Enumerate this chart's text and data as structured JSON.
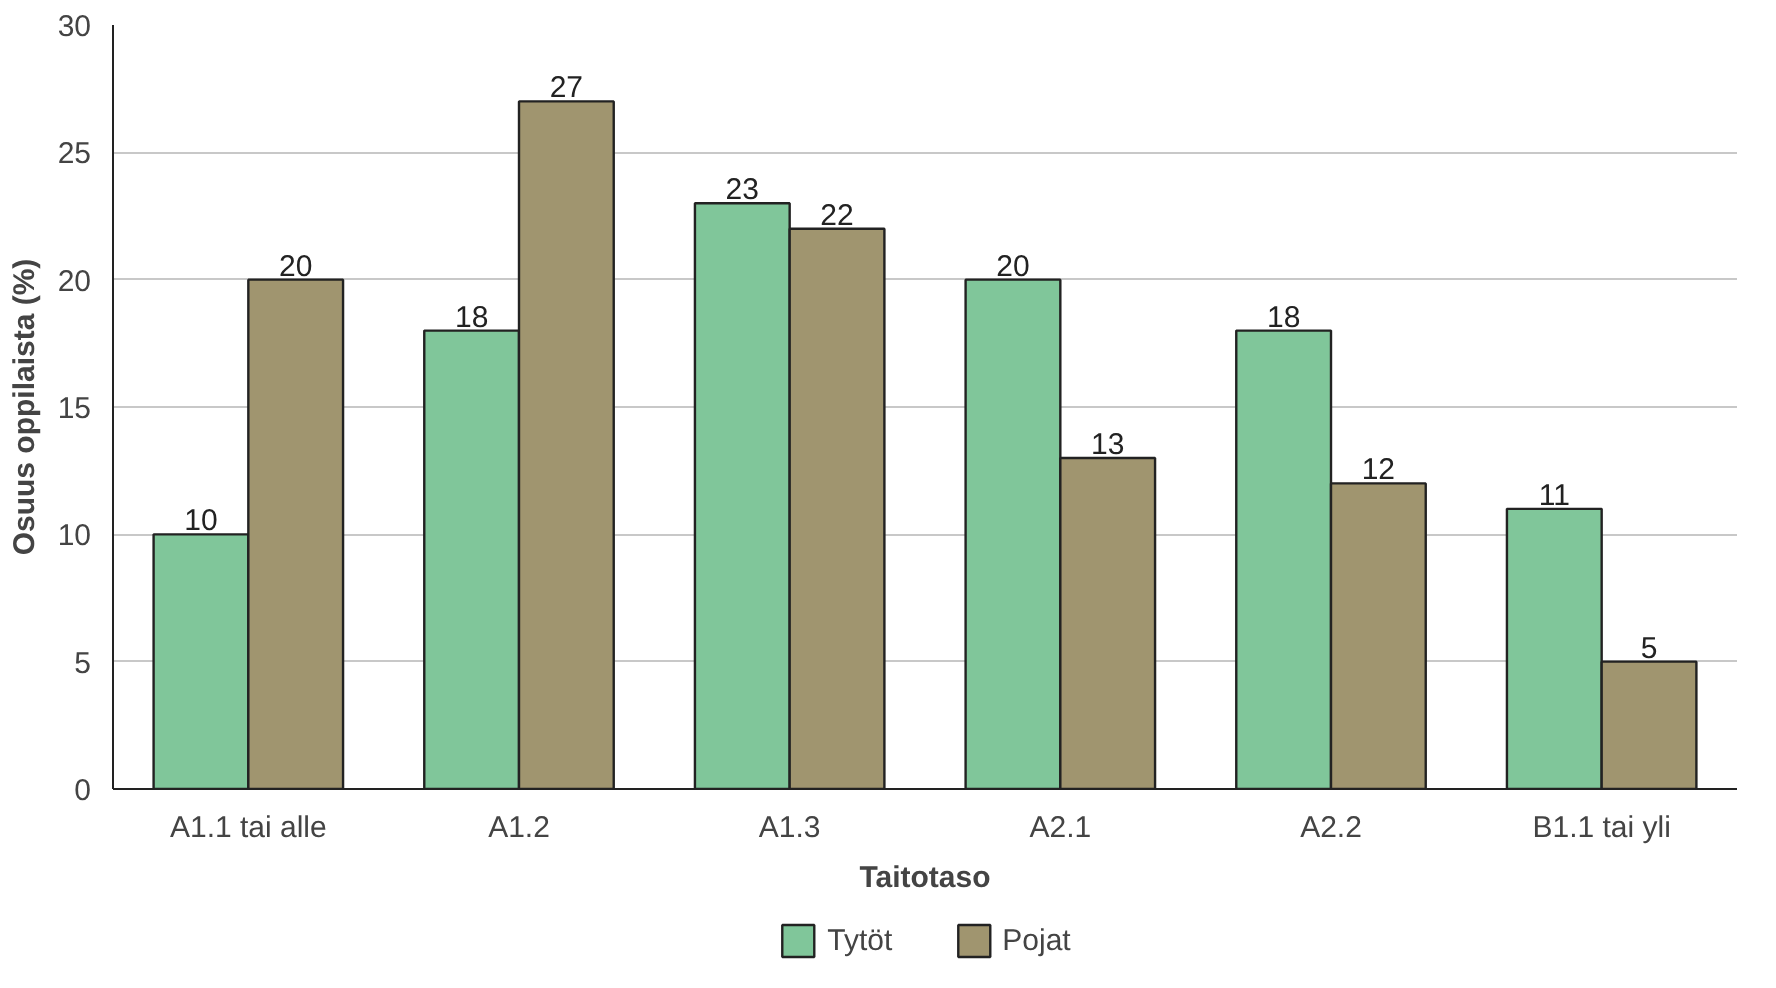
{
  "chart_data": {
    "type": "bar",
    "xlabel": "Taitotaso",
    "ylabel": "Osuus oppilaista (%)",
    "categories": [
      "A1.1 tai alle",
      "A1.2",
      "A1.3",
      "A2.1",
      "A2.2",
      "B1.1 tai yli"
    ],
    "series": [
      {
        "name": "Tytöt",
        "color": "#80c69a",
        "values": [
          10,
          18,
          23,
          20,
          18,
          11
        ]
      },
      {
        "name": "Pojat",
        "color": "#a0956f",
        "values": [
          20,
          27,
          22,
          13,
          12,
          5
        ]
      }
    ],
    "ylim": [
      0,
      30
    ],
    "yticks": [
      0,
      5,
      10,
      15,
      20,
      25,
      30
    ],
    "grid": "y",
    "legend": "bottom",
    "data_labels": true
  }
}
